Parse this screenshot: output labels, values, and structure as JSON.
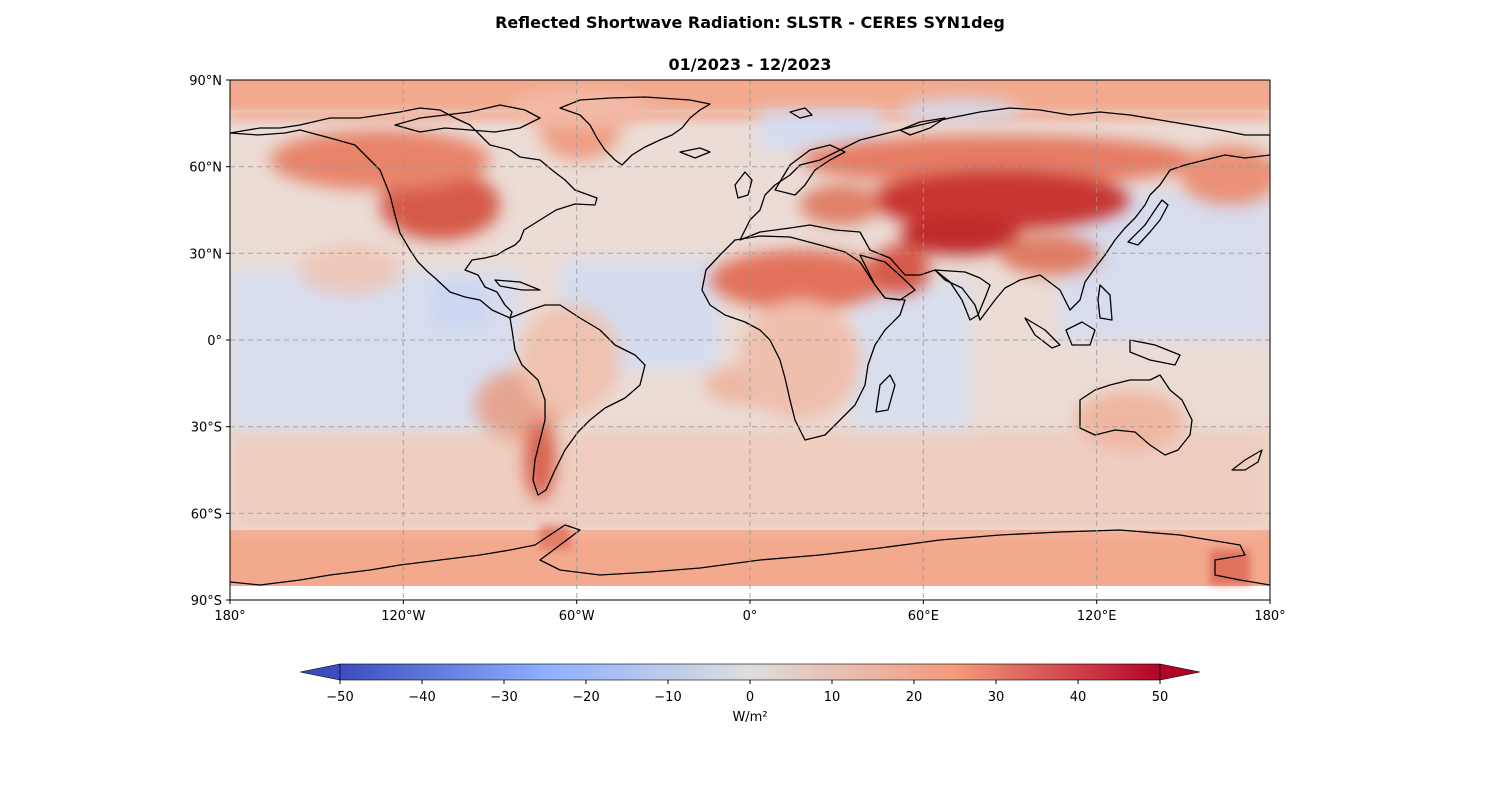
{
  "title": "Reflected Shortwave Radiation: SLSTR - CERES SYN1deg",
  "subtitle": "01/2023 - 12/2023",
  "map": {
    "projection": "PlateCarree",
    "lon_range": [
      -180,
      180
    ],
    "lat_range": [
      -90,
      90
    ],
    "gridlines": true,
    "x_ticks": [
      {
        "value": -180,
        "label": "180°"
      },
      {
        "value": -120,
        "label": "120°W"
      },
      {
        "value": -60,
        "label": "60°W"
      },
      {
        "value": 0,
        "label": "0°"
      },
      {
        "value": 60,
        "label": "60°E"
      },
      {
        "value": 120,
        "label": "120°E"
      },
      {
        "value": 180,
        "label": "180°"
      }
    ],
    "y_ticks": [
      {
        "value": 90,
        "label": "90°N"
      },
      {
        "value": 60,
        "label": "60°N"
      },
      {
        "value": 30,
        "label": "30°N"
      },
      {
        "value": 0,
        "label": "0°"
      },
      {
        "value": -30,
        "label": "30°S"
      },
      {
        "value": -60,
        "label": "60°S"
      },
      {
        "value": -90,
        "label": "90°S"
      }
    ]
  },
  "colorbar": {
    "label": "W/m²",
    "cmap": "coolwarm",
    "vmin": -50,
    "vmax": 50,
    "extend": "both",
    "ticks": [
      {
        "value": -50,
        "label": "−50"
      },
      {
        "value": -40,
        "label": "−40"
      },
      {
        "value": -30,
        "label": "−30"
      },
      {
        "value": -20,
        "label": "−20"
      },
      {
        "value": -10,
        "label": "−10"
      },
      {
        "value": 0,
        "label": "0"
      },
      {
        "value": 10,
        "label": "10"
      },
      {
        "value": 20,
        "label": "20"
      },
      {
        "value": 30,
        "label": "30"
      },
      {
        "value": 40,
        "label": "40"
      },
      {
        "value": 50,
        "label": "50"
      }
    ],
    "colors": {
      "low": "#3b4cc0",
      "mid_low": "#8db0fe",
      "neutral": "#dddddd",
      "mid_high": "#f49a7b",
      "high": "#b40426"
    }
  },
  "field_colors": {
    "ocean_background": "#e9dcd6",
    "polar_band": "#f2a98e",
    "tropical_ocean": "#d4dff4"
  }
}
